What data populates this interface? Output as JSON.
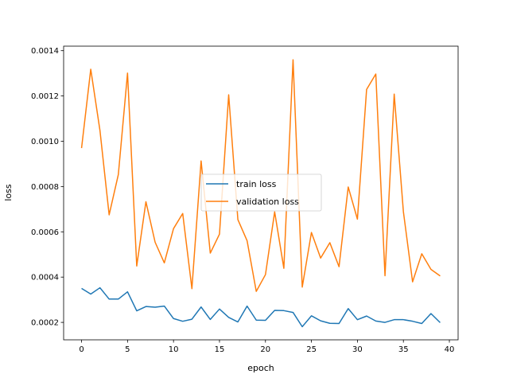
{
  "chart_data": {
    "type": "line",
    "title": "",
    "xlabel": "epoch",
    "ylabel": "loss",
    "xlim": [
      -1.95,
      40.95
    ],
    "ylim": [
      0.000123,
      0.00142
    ],
    "xticks": [
      0,
      5,
      10,
      15,
      20,
      25,
      30,
      35,
      40
    ],
    "yticks": [
      0.0002,
      0.0004,
      0.0006,
      0.0008,
      0.001,
      0.0012,
      0.0014
    ],
    "ytick_labels": [
      "0.0002",
      "0.0004",
      "0.0006",
      "0.0008",
      "0.0010",
      "0.0012",
      "0.0014"
    ],
    "grid": false,
    "legend_position": "center",
    "x": [
      0,
      1,
      2,
      3,
      4,
      5,
      6,
      7,
      8,
      9,
      10,
      11,
      12,
      13,
      14,
      15,
      16,
      17,
      18,
      19,
      20,
      21,
      22,
      23,
      24,
      25,
      26,
      27,
      28,
      29,
      30,
      31,
      32,
      33,
      34,
      35,
      36,
      37,
      38,
      39
    ],
    "series": [
      {
        "name": "train loss",
        "color": "#1f77b4",
        "values": [
          0.00035,
          0.000325,
          0.000353,
          0.000303,
          0.000303,
          0.000335,
          0.000251,
          0.00027,
          0.000267,
          0.000272,
          0.000217,
          0.000205,
          0.000214,
          0.000268,
          0.000213,
          0.000259,
          0.000222,
          0.000202,
          0.000272,
          0.00021,
          0.000209,
          0.000253,
          0.000252,
          0.000244,
          0.000181,
          0.000229,
          0.000207,
          0.000196,
          0.000195,
          0.000261,
          0.000212,
          0.000228,
          0.000206,
          0.0002,
          0.000212,
          0.000212,
          0.000205,
          0.000195,
          0.000239,
          0.000199
        ]
      },
      {
        "name": "validation loss",
        "color": "#ff7f0e",
        "values": [
          0.00097,
          0.001318,
          0.001048,
          0.000675,
          0.000853,
          0.001301,
          0.000449,
          0.000733,
          0.000554,
          0.000463,
          0.000614,
          0.000681,
          0.000349,
          0.000913,
          0.000506,
          0.00059,
          0.001205,
          0.000654,
          0.000561,
          0.000337,
          0.000411,
          0.000688,
          0.000439,
          0.00136,
          0.000356,
          0.000597,
          0.000484,
          0.000552,
          0.000446,
          0.000798,
          0.000656,
          0.001229,
          0.001297,
          0.000406,
          0.001208,
          0.000689,
          0.000379,
          0.000503,
          0.000434,
          0.000405
        ]
      }
    ]
  }
}
